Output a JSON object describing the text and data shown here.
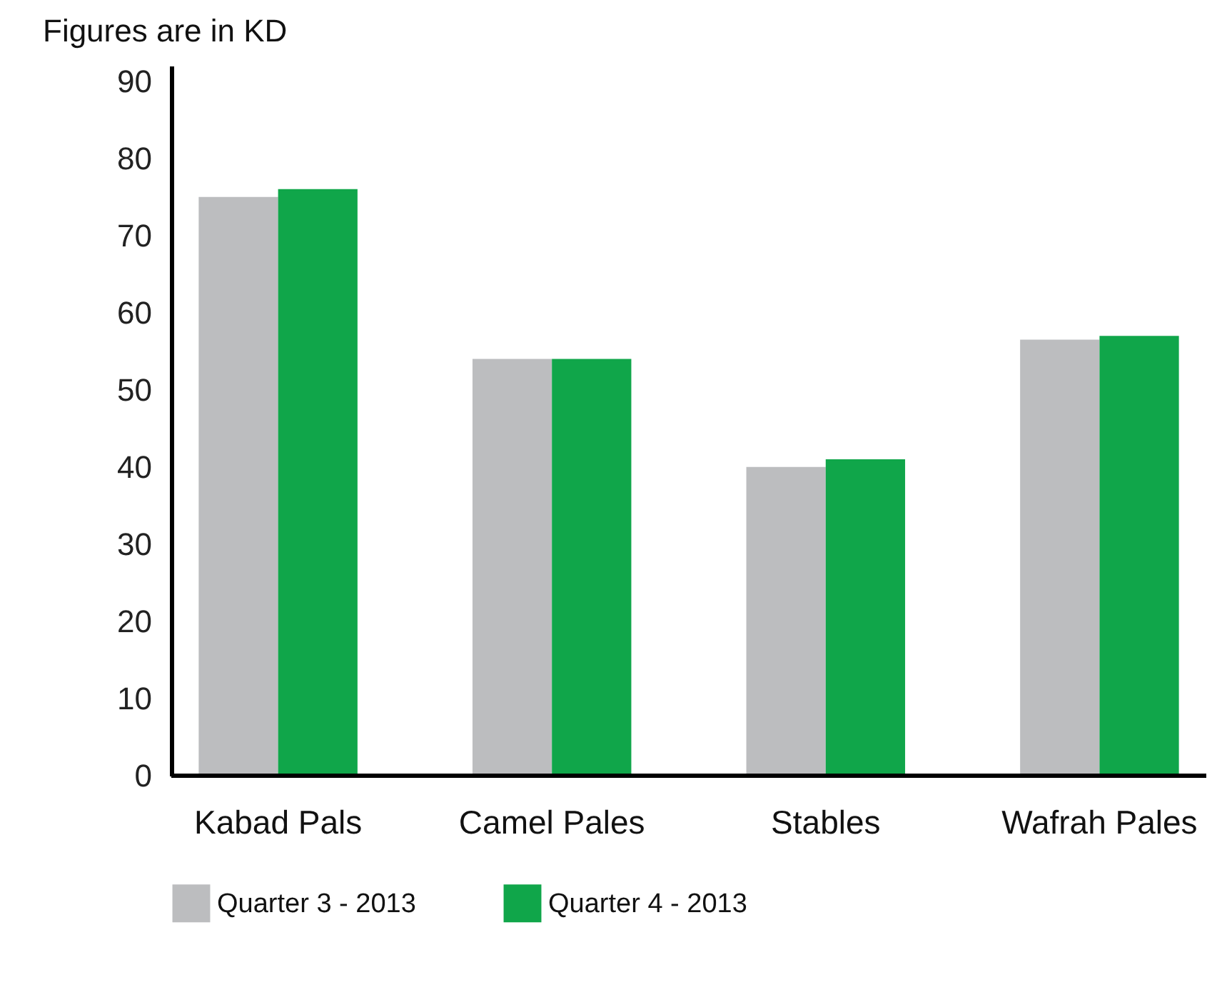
{
  "chart_data": {
    "type": "bar",
    "title": "Figures are in KD",
    "categories": [
      "Kabad Pals",
      "Camel Pales",
      "Stables",
      "Wafrah Pales"
    ],
    "series": [
      {
        "name": "Quarter 3 - 2013",
        "color": "#bcbdbf",
        "values": [
          75,
          54,
          40,
          56.5
        ]
      },
      {
        "name": "Quarter 4 - 2013",
        "color": "#10a64a",
        "values": [
          76,
          54,
          41,
          57
        ]
      }
    ],
    "ylim": [
      0,
      92
    ],
    "yticks": [
      0,
      10,
      20,
      30,
      40,
      50,
      60,
      70,
      80,
      90
    ],
    "grid": false,
    "legend": "bottom"
  }
}
